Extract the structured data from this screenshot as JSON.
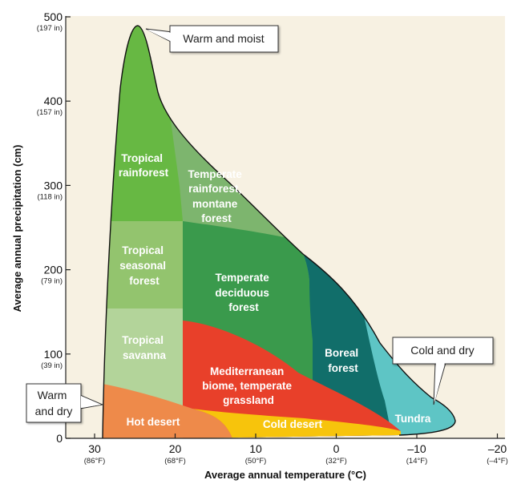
{
  "axes": {
    "x_title": "Average annual temperature (°C)",
    "y_title": "Average annual precipitation (cm)",
    "x_ticks": [
      {
        "main": "30",
        "sub": "(86°F)"
      },
      {
        "main": "20",
        "sub": "(68°F)"
      },
      {
        "main": "10",
        "sub": "(50°F)"
      },
      {
        "main": "0",
        "sub": "(32°F)"
      },
      {
        "main": "–10",
        "sub": "(14°F)"
      },
      {
        "main": "–20",
        "sub": "(–4°F)"
      }
    ],
    "y_ticks": [
      {
        "main": "0",
        "sub": ""
      },
      {
        "main": "100",
        "sub": "(39 in)"
      },
      {
        "main": "200",
        "sub": "(79 in)"
      },
      {
        "main": "300",
        "sub": "(118 in)"
      },
      {
        "main": "400",
        "sub": "(157 in)"
      },
      {
        "main": "500",
        "sub": "(197 in)"
      }
    ]
  },
  "biomes": {
    "tropical_rainforest": [
      "Tropical",
      "rainforest"
    ],
    "temperate_rainforest": [
      "Temperate",
      "rainforest,",
      "montane",
      "forest"
    ],
    "tropical_seasonal": [
      "Tropical",
      "seasonal",
      "forest"
    ],
    "temperate_deciduous": [
      "Temperate",
      "deciduous",
      "forest"
    ],
    "tropical_savanna": [
      "Tropical",
      "savanna"
    ],
    "boreal": [
      "Boreal",
      "forest"
    ],
    "mediterranean": [
      "Mediterranean",
      "biome, temperate",
      "grassland"
    ],
    "hot_desert": [
      "Hot desert"
    ],
    "cold_desert": [
      "Cold desert"
    ],
    "tundra": [
      "Tundra"
    ]
  },
  "callouts": {
    "warm_moist": "Warm and moist",
    "cold_dry": "Cold and dry",
    "warm_dry": [
      "Warm",
      "and dry"
    ]
  },
  "colors": {
    "background": "#f7f1e2",
    "tropical_rainforest": "#67b843",
    "temperate_rainforest": "#7db56e",
    "tropical_seasonal": "#93c46e",
    "temperate_deciduous": "#3a9a4c",
    "tropical_savanna": "#b3d49a",
    "boreal": "#116e6a",
    "mediterranean": "#e8402a",
    "hot_desert": "#ee8a4a",
    "cold_desert": "#f7c40c",
    "tundra": "#5ec5c5"
  }
}
